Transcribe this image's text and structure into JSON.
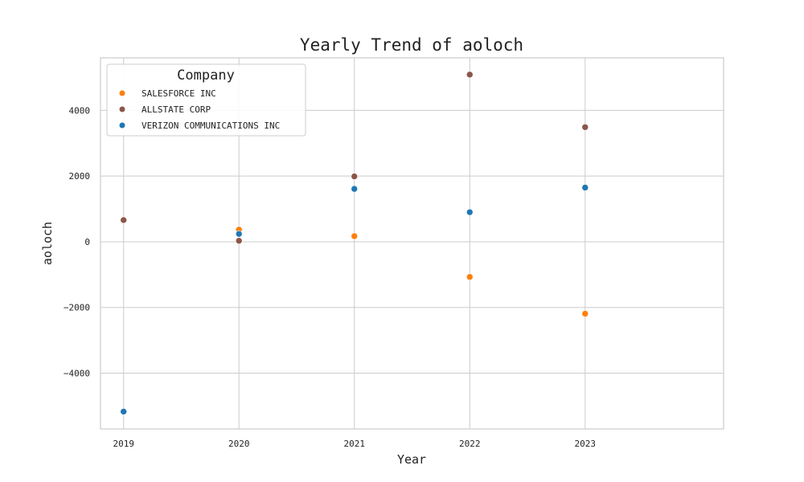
{
  "chart_data": {
    "type": "scatter",
    "title": "Yearly Trend of aoloch",
    "xlabel": "Year",
    "ylabel": "aoloch",
    "x": [
      2019,
      2020,
      2021,
      2022,
      2023
    ],
    "x_ticks": [
      "2019",
      "2020",
      "2021",
      "2022",
      "2023"
    ],
    "xlim": [
      2018.8,
      2024.2
    ],
    "y_ticks": [
      -4000,
      -2000,
      0,
      2000,
      4000
    ],
    "y_tick_labels": [
      "−4000",
      "−2000",
      "0",
      "2000",
      "4000"
    ],
    "ylim": [
      -5700,
      5600
    ],
    "grid": true,
    "legend": {
      "title": "Company",
      "placement": "top-left"
    },
    "series": [
      {
        "name": "SALESFORCE INC",
        "color": "#ff7f0e",
        "points": [
          {
            "x": 2020,
            "y": 370
          },
          {
            "x": 2021,
            "y": 170
          },
          {
            "x": 2022,
            "y": -1070
          },
          {
            "x": 2023,
            "y": -2190
          }
        ]
      },
      {
        "name": "ALLSTATE CORP",
        "color": "#8c564b",
        "points": [
          {
            "x": 2019,
            "y": 660
          },
          {
            "x": 2020,
            "y": 30
          },
          {
            "x": 2021,
            "y": 1990
          },
          {
            "x": 2022,
            "y": 5090
          },
          {
            "x": 2023,
            "y": 3490
          }
        ]
      },
      {
        "name": "VERIZON COMMUNICATIONS INC",
        "color": "#1f77b4",
        "points": [
          {
            "x": 2019,
            "y": -5170
          },
          {
            "x": 2020,
            "y": 240
          },
          {
            "x": 2021,
            "y": 1610
          },
          {
            "x": 2022,
            "y": 900
          },
          {
            "x": 2023,
            "y": 1650
          }
        ]
      }
    ]
  }
}
